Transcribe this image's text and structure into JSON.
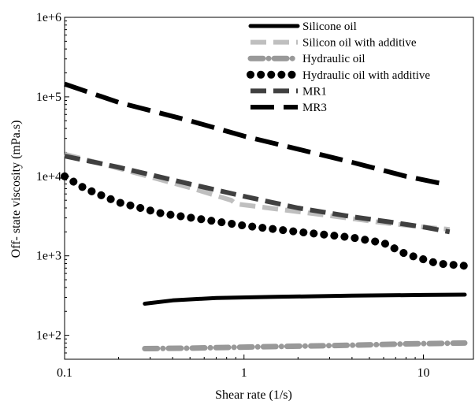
{
  "chart_data": {
    "type": "line",
    "xlabel": "Shear rate (1/s)",
    "ylabel": "Off- state viscosity (mPa.s)",
    "x_scale": "log",
    "y_scale": "log",
    "xlim": [
      0.1,
      19
    ],
    "ylim": [
      50,
      1000000
    ],
    "x_ticks": [
      {
        "value": 0.1,
        "label": "0.1"
      },
      {
        "value": 1,
        "label": "1"
      },
      {
        "value": 10,
        "label": "10"
      }
    ],
    "y_ticks": [
      {
        "value": 100,
        "label": "1e+2"
      },
      {
        "value": 1000,
        "label": "1e+3"
      },
      {
        "value": 10000,
        "label": "1e+4"
      },
      {
        "value": 100000,
        "label": "1e+5"
      },
      {
        "value": 1000000,
        "label": "1e+6"
      }
    ],
    "grid": false,
    "legend_position": "top-right",
    "series": [
      {
        "name": "Silicone oil",
        "color": "#000000",
        "style": "solid",
        "points": [
          [
            0.28,
            250
          ],
          [
            0.4,
            275
          ],
          [
            0.7,
            295
          ],
          [
            1.5,
            305
          ],
          [
            4,
            315
          ],
          [
            10,
            322
          ],
          [
            17,
            325
          ]
        ]
      },
      {
        "name": "Silicon oil with additive",
        "color": "#bfbfbf",
        "style": "dash",
        "points": [
          [
            0.1,
            19000
          ],
          [
            0.15,
            15000
          ],
          [
            0.25,
            11000
          ],
          [
            0.5,
            7200
          ],
          [
            0.85,
            5000
          ],
          [
            0.9,
            4500
          ],
          [
            1.5,
            3900
          ],
          [
            3,
            3200
          ],
          [
            6,
            2600
          ],
          [
            10,
            2300
          ],
          [
            14,
            2150
          ]
        ]
      },
      {
        "name": "Hydraulic oil",
        "color": "#999999",
        "style": "dash-dot",
        "points": [
          [
            0.28,
            68
          ],
          [
            0.5,
            69
          ],
          [
            1,
            71
          ],
          [
            2,
            73
          ],
          [
            4,
            75
          ],
          [
            8,
            78
          ],
          [
            17,
            80
          ]
        ]
      },
      {
        "name": "Hydraulic oil with additive",
        "color": "#000000",
        "style": "dots",
        "points": [
          [
            0.1,
            10000
          ],
          [
            0.13,
            7000
          ],
          [
            0.2,
            4700
          ],
          [
            0.35,
            3400
          ],
          [
            0.6,
            2850
          ],
          [
            1,
            2400
          ],
          [
            2,
            2000
          ],
          [
            4,
            1700
          ],
          [
            6,
            1450
          ],
          [
            8,
            1050
          ],
          [
            12,
            800
          ],
          [
            18,
            740
          ]
        ]
      },
      {
        "name": "MR1",
        "color": "#404040",
        "style": "dash",
        "points": [
          [
            0.1,
            18000
          ],
          [
            0.2,
            13000
          ],
          [
            0.5,
            8000
          ],
          [
            1,
            5600
          ],
          [
            2,
            4000
          ],
          [
            4,
            3100
          ],
          [
            7,
            2600
          ],
          [
            10,
            2300
          ],
          [
            14,
            2000
          ]
        ]
      },
      {
        "name": "MR3",
        "color": "#000000",
        "style": "long-dash",
        "points": [
          [
            0.1,
            145000
          ],
          [
            0.2,
            85000
          ],
          [
            0.5,
            50000
          ],
          [
            1,
            32000
          ],
          [
            2,
            22000
          ],
          [
            4,
            15000
          ],
          [
            8,
            10000
          ],
          [
            13,
            8000
          ]
        ]
      }
    ]
  }
}
